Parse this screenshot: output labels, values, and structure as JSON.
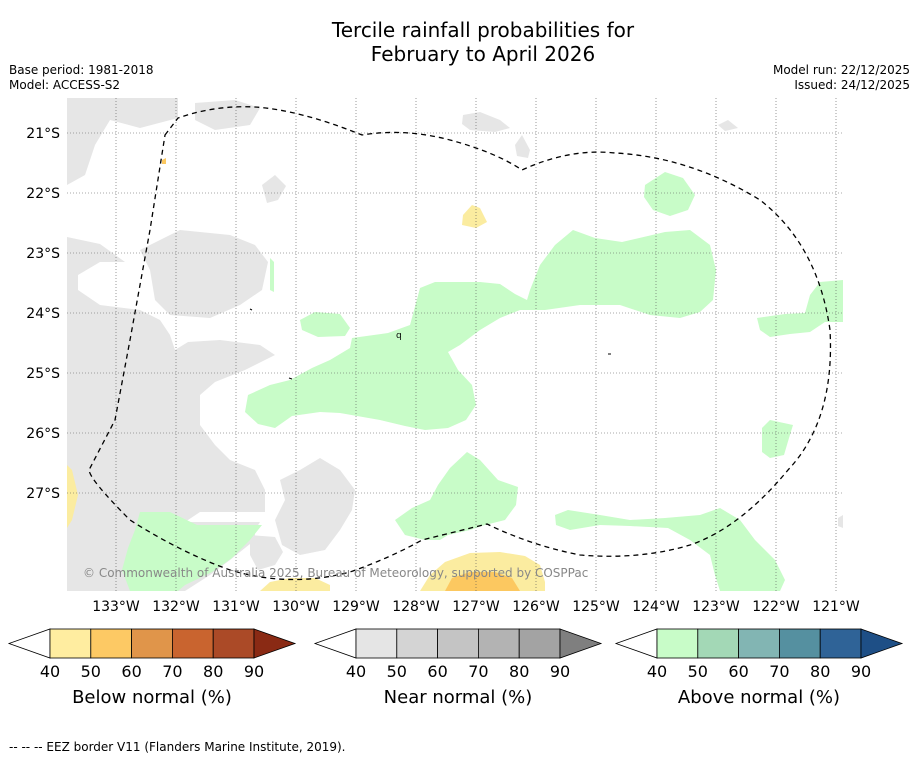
{
  "title": {
    "line1": "Tercile rainfall probabilities for",
    "line2": "February to April 2026"
  },
  "meta": {
    "base_period": "Base period: 1981-2018",
    "model": "Model: ACCESS-S2",
    "model_run": "Model run: 22/12/2025",
    "issued": "Issued: 24/12/2025"
  },
  "map": {
    "lat_labels": [
      "21°S",
      "22°S",
      "23°S",
      "24°S",
      "25°S",
      "26°S",
      "27°S"
    ],
    "lon_labels": [
      "133°W",
      "132°W",
      "131°W",
      "130°W",
      "129°W",
      "128°W",
      "127°W",
      "126°W",
      "125°W",
      "124°W",
      "123°W",
      "122°W",
      "121°W"
    ],
    "copyright": "© Commonwealth of Australia 2025, Bureau of Meteorology, supported by COSPPac",
    "colors": {
      "near_normal_40": "#e6e6e6",
      "above_normal_40": "#c8fcc8",
      "below_normal_40": "#fbeca0",
      "below_normal_50": "#fcc860"
    }
  },
  "colorbars": [
    {
      "label": "Below normal (%)",
      "ticks": [
        "40",
        "50",
        "60",
        "70",
        "80",
        "90"
      ],
      "colors": [
        "#ffeda0",
        "#fdc964",
        "#e0954a",
        "#c9642f",
        "#ab4a27"
      ],
      "extend_color": "#8a2a14"
    },
    {
      "label": "Near normal (%)",
      "ticks": [
        "40",
        "50",
        "60",
        "70",
        "80",
        "90"
      ],
      "colors": [
        "#e5e5e5",
        "#d4d4d4",
        "#c4c4c4",
        "#b3b3b3",
        "#a3a3a3"
      ],
      "extend_color": "#7f7f7f"
    },
    {
      "label": "Above normal (%)",
      "ticks": [
        "40",
        "50",
        "60",
        "70",
        "80",
        "90"
      ],
      "colors": [
        "#c8fcc8",
        "#a3d8b6",
        "#82b5b3",
        "#5590a0",
        "#2f6397"
      ],
      "extend_color": "#1e4f86"
    }
  ],
  "footnote": "--  --  -- EEZ border V11 (Flanders Marine Institute, 2019)."
}
